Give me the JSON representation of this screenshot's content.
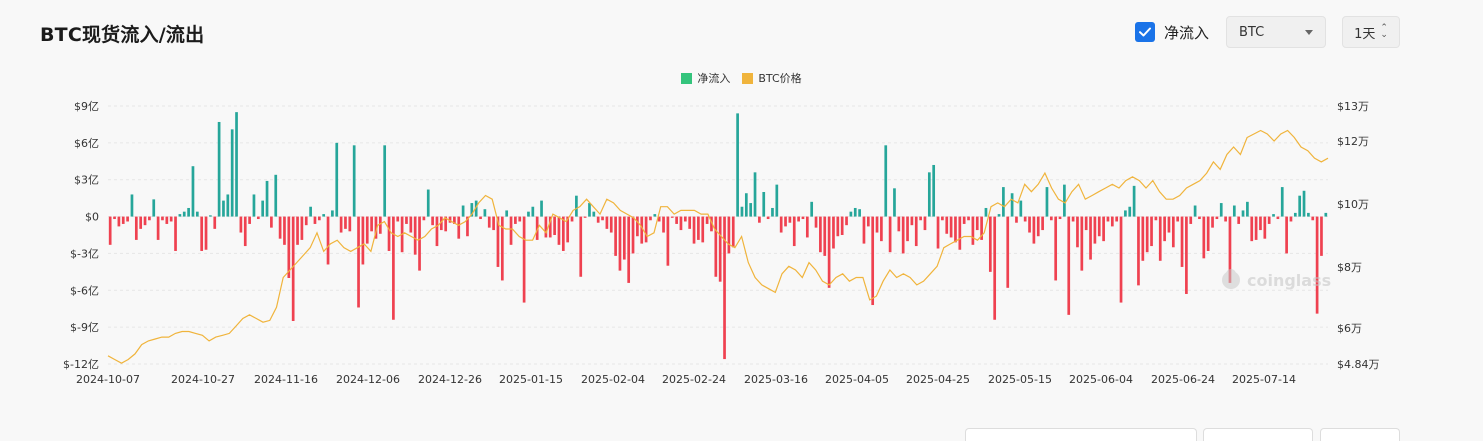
{
  "header": {
    "title": "BTC现货流入/流出",
    "net_flow_checkbox": {
      "label": "净流入",
      "checked": true
    },
    "coin_select": {
      "value": "BTC"
    },
    "interval_select": {
      "value": "1天"
    }
  },
  "watermark": "coinglass",
  "colors": {
    "inflow": "#26a69a",
    "outflow": "#ef4150",
    "price": "#f0b43c",
    "accent": "#1a73e8"
  },
  "chart_data": {
    "type": "bar",
    "legend": [
      "净流入",
      "BTC价格"
    ],
    "legend_position": "top-center",
    "grid": true,
    "y_left": {
      "ticks": [
        "$9亿",
        "$6亿",
        "$3亿",
        "$0",
        "$-3亿",
        "$-6亿",
        "$-9亿",
        "$-12亿"
      ],
      "range": [
        -12,
        9
      ],
      "unit": "亿"
    },
    "y_right": {
      "ticks": [
        "$13万",
        "$12万",
        "$10万",
        "$8万",
        "$6万",
        "$4.84万"
      ],
      "tick_values": [
        13,
        12,
        10,
        8,
        6,
        4.84
      ],
      "unit": "万"
    },
    "x_labels": [
      "2024-10-07",
      "2024-10-27",
      "2024-11-16",
      "2024-12-06",
      "2024-12-26",
      "2025-01-15",
      "2025-02-04",
      "2025-02-24",
      "2025-03-16",
      "2025-04-05",
      "2025-04-25",
      "2025-05-15",
      "2025-06-04",
      "2025-06-24",
      "2025-07-14"
    ],
    "series": [
      {
        "name": "净流入",
        "type": "bar",
        "values": [
          -2.3,
          -0.2,
          -0.8,
          -0.6,
          -0.4,
          1.8,
          -1.9,
          -1,
          -0.7,
          -0.3,
          1.4,
          -1.9,
          -0.3,
          -0.6,
          -0.4,
          -2.8,
          0.2,
          0.4,
          0.7,
          4.1,
          0.4,
          -2.8,
          -2.7,
          0.1,
          -1,
          7.7,
          1.3,
          1.8,
          7.1,
          8.5,
          -1.3,
          -2.4,
          -0.6,
          1.8,
          -0.2,
          1.3,
          2.9,
          -0.9,
          3.4,
          -1.8,
          -2.3,
          -5,
          -8.5,
          -2.3,
          -1.9,
          -0.7,
          0.8,
          -0.6,
          -0.3,
          0.2,
          -3.9,
          0.5,
          6,
          -1.3,
          -1,
          -1.2,
          5.8,
          -7.4,
          -3.9,
          -2.2,
          -1.2,
          -1.8,
          -1.4,
          5.8,
          -2.8,
          -8.4,
          -0.4,
          -2.9,
          -0.6,
          -1.3,
          -3.1,
          -4.4,
          -0.3,
          2.2,
          -0.7,
          -2.4,
          -1.1,
          -1.2,
          -0.5,
          -0.6,
          -1.8,
          0.9,
          -1.6,
          1.1,
          1.3,
          -0.2,
          0.6,
          -0.9,
          -1.1,
          -4.1,
          -5.2,
          0.5,
          -2.3,
          -0.6,
          -0.4,
          -7,
          0.4,
          0.8,
          -1.9,
          1.3,
          -1.7,
          -1.7,
          -1.5,
          -2.3,
          -2.8,
          -2.1,
          -0.4,
          1.7,
          -4.9,
          -0.1,
          1.1,
          0.4,
          -0.5,
          -0.3,
          -1,
          -1.3,
          -3.2,
          -4.4,
          -3.5,
          -5.4,
          -3,
          -1.6,
          -2.2,
          -2.1,
          -0.3,
          0.2,
          -0.4,
          -1.3,
          -4,
          -0.1,
          -0.6,
          -1.1,
          -0.4,
          -1,
          -2.2,
          -1.9,
          -2.1,
          -0.6,
          -1.2,
          -4.9,
          -5.3,
          -11.6,
          -3,
          -2.5,
          8.4,
          0.8,
          1.9,
          1.1,
          3.6,
          -0.5,
          2,
          -0.2,
          0.7,
          2.6,
          -1.3,
          -0.8,
          -0.5,
          -2.4,
          -0.4,
          -0.2,
          -1.7,
          1.2,
          -0.9,
          -2.9,
          -3.2,
          -5.8,
          -2.6,
          -1.6,
          -1.5,
          -0.7,
          0.4,
          0.7,
          0.6,
          -2.2,
          -0.8,
          -7.2,
          -1.3,
          -2,
          5.8,
          -2.9,
          2.3,
          -1.2,
          -3,
          -2,
          -0.7,
          -2.4,
          -0.3,
          -1.1,
          3.6,
          4.2,
          -2.6,
          -0.3,
          -1.4,
          -1.7,
          -2.1,
          -2.7,
          -0.6,
          -0.3,
          -2.3,
          -1.1,
          -1.9,
          0.7,
          -4.5,
          -8.4,
          0.2,
          2.4,
          -5.8,
          1.9,
          -0.5,
          1.3,
          -0.4,
          -1.3,
          -2.2,
          -1.6,
          -1.1,
          2.4,
          -0.3,
          -5.2,
          -0.2,
          2.6,
          -8,
          -0.4,
          -2.5,
          -4.4,
          -1.1,
          -3.5,
          -2.2,
          -1.6,
          -2,
          -0.4,
          -0.8,
          -0.4,
          -7,
          0.5,
          0.8,
          2.5,
          -5.6,
          -3.6,
          -2.9,
          -2.4,
          -0.3,
          -3.6,
          -2,
          -1.3,
          -2.5,
          -0.4,
          -4.1,
          -6.3,
          -0.6,
          0.9,
          -0.2,
          -3.4,
          -2.8,
          -0.9,
          -0.2,
          1.1,
          -0.4,
          -5.4,
          0.9,
          -0.6,
          0.5,
          1.2,
          -2,
          -1.9,
          -1.1,
          -1.8,
          -0.6,
          0.2,
          -0.2,
          2.4,
          -3,
          -0.4,
          0.3,
          1.7,
          2.1,
          0.3,
          -0.3,
          -7.9,
          -3.2,
          0.3
        ]
      },
      {
        "name": "BTC价格",
        "type": "line",
        "values": [
          6.3,
          6.2,
          6.1,
          6.2,
          6.35,
          6.6,
          6.7,
          6.75,
          6.8,
          6.8,
          6.9,
          6.95,
          6.95,
          6.9,
          6.85,
          6.7,
          6.8,
          6.85,
          6.9,
          7.1,
          7.3,
          7.4,
          7.3,
          7.2,
          7.25,
          7.6,
          8.4,
          8.6,
          8.8,
          9.0,
          9.2,
          9.6,
          9.1,
          9.3,
          9.4,
          9.2,
          9.1,
          9.2,
          9.3,
          9.1,
          9.8,
          9.9,
          9.6,
          9.5,
          9.6,
          9.5,
          9.4,
          9.5,
          9.7,
          9.8,
          10.0,
          9.9,
          9.8,
          9.9,
          10.1,
          10.4,
          10.6,
          10.5,
          9.8,
          9.7,
          9.7,
          9.5,
          9.4,
          9.4,
          9.8,
          9.6,
          10.1,
          10.0,
          9.9,
          10.2,
          10.3,
          10.5,
          10.3,
          10.1,
          10.5,
          10.4,
          10.2,
          10.1,
          10.0,
          9.8,
          9.5,
          9.6,
          10.3,
          10.3,
          10.1,
          10.2,
          10.2,
          10.2,
          10.1,
          10.1,
          9.7,
          9.5,
          9.3,
          9.2,
          9.5,
          8.8,
          8.4,
          8.2,
          8.1,
          8.0,
          8.5,
          8.7,
          8.6,
          8.4,
          8.8,
          8.6,
          8.3,
          8.2,
          8.4,
          8.5,
          8.3,
          8.4,
          8.4,
          7.8,
          7.9,
          8.3,
          8.6,
          8.4,
          8.5,
          8.4,
          8.2,
          8.3,
          8.5,
          8.7,
          9.2,
          9.3,
          9.4,
          9.5,
          9.5,
          9.4,
          9.6,
          10.3,
          10.4,
          10.3,
          10.5,
          10.4,
          10.9,
          10.7,
          10.9,
          11.2,
          10.8,
          10.5,
          10.4,
          10.7,
          10.9,
          10.5,
          10.6,
          10.7,
          10.8,
          10.9,
          10.8,
          11.0,
          11.1,
          11.0,
          10.8,
          11.0,
          10.7,
          10.5,
          10.5,
          10.6,
          10.8,
          10.9,
          11.0,
          11.2,
          11.5,
          11.3,
          11.7,
          11.9,
          11.7,
          12.1,
          12.2,
          12.3,
          12.2,
          12.0,
          12.2,
          12.3,
          12.1,
          11.9,
          11.8,
          11.6,
          11.5,
          11.6
        ]
      }
    ]
  }
}
